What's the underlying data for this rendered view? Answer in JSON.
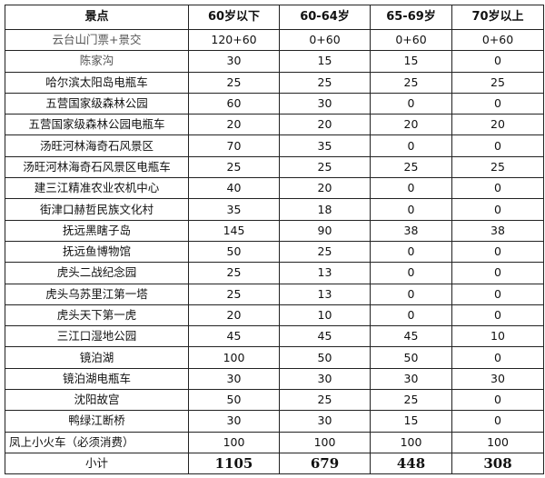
{
  "headers": [
    "景点",
    "60岁以下",
    "60-64岁",
    "65-69岁",
    "70岁以上"
  ],
  "rows": [
    [
      "云台山门票+景交",
      "120+60",
      "0+60",
      "0+60",
      "0+60"
    ],
    [
      "陈家沟",
      "30",
      "15",
      "15",
      "0"
    ],
    [
      "哈尔滨太阳岛电瓶车",
      "25",
      "25",
      "25",
      "25"
    ],
    [
      "五营国家级森林公园",
      "60",
      "30",
      "0",
      "0"
    ],
    [
      "五营国家级森林公园电瓶车",
      "20",
      "20",
      "20",
      "20"
    ],
    [
      "汤旺河林海奇石风景区",
      "70",
      "35",
      "0",
      "0"
    ],
    [
      "汤旺河林海奇石风景区电瓶车",
      "25",
      "25",
      "25",
      "25"
    ],
    [
      "建三江精准农业农机中心",
      "40",
      "20",
      "0",
      "0"
    ],
    [
      "街津口赫哲民族文化村",
      "35",
      "18",
      "0",
      "0"
    ],
    [
      "抚远黑瞎子岛",
      "145",
      "90",
      "38",
      "38"
    ],
    [
      "抚远鱼博物馆",
      "50",
      "25",
      "0",
      "0"
    ],
    [
      "虎头二战纪念园",
      "25",
      "13",
      "0",
      "0"
    ],
    [
      "虎头乌苏里江第一塔",
      "25",
      "13",
      "0",
      "0"
    ],
    [
      "虎头天下第一虎",
      "20",
      "10",
      "0",
      "0"
    ],
    [
      "三江口湿地公园",
      "45",
      "45",
      "45",
      "10"
    ],
    [
      "镜泊湖",
      "100",
      "50",
      "50",
      "0"
    ],
    [
      "镜泊湖电瓶车",
      "30",
      "30",
      "30",
      "30"
    ],
    [
      "沈阳故宫",
      "50",
      "25",
      "25",
      "0"
    ],
    [
      "鸭绿江断桥",
      "30",
      "30",
      "15",
      "0"
    ],
    [
      "凤上小火车（必须消费）",
      "100",
      "100",
      "100",
      "100"
    ]
  ],
  "total": [
    "小计",
    "1105",
    "679",
    "448",
    "308"
  ]
}
